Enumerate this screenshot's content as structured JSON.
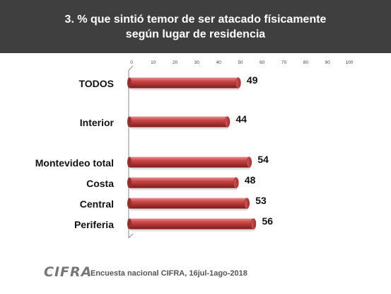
{
  "title": {
    "line1": "3. % que sintió temor de ser atacado físicamente",
    "line2": "según lugar de residencia"
  },
  "chart_data": {
    "type": "bar",
    "orientation": "horizontal",
    "categories": [
      "TODOS",
      "Interior",
      "Montevideo total",
      "Costa",
      "Central",
      "Periferia"
    ],
    "values": [
      49,
      44,
      54,
      48,
      53,
      56
    ],
    "xlim": [
      0,
      100
    ],
    "xticks": [
      0,
      10,
      20,
      30,
      40,
      50,
      60,
      70,
      80,
      90,
      100
    ],
    "xaxis_position": "top",
    "grid": false,
    "bar_color": "#c0393b"
  },
  "footer": {
    "logo": "CIFRA",
    "source": "Encuesta nacional CIFRA,  16jul-1ago-2018"
  }
}
